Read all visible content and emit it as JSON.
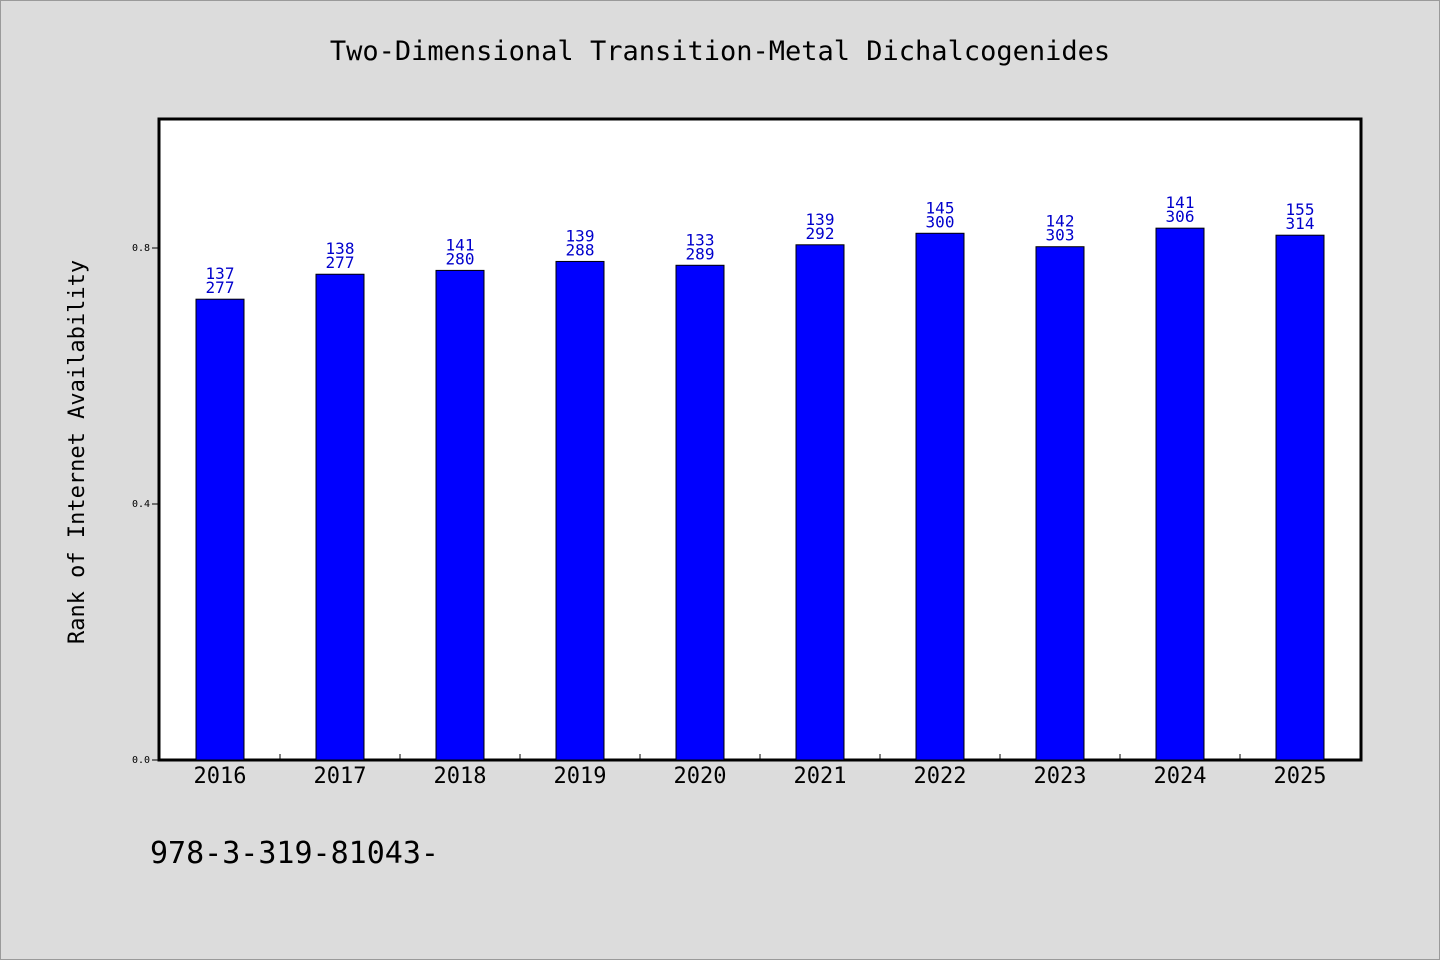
{
  "chart_data": {
    "type": "bar",
    "title": "Two-Dimensional Transition-Metal Dichalcogenides",
    "xlabel": "",
    "ylabel": "Rank of Internet Availability",
    "categories": [
      "2016",
      "2017",
      "2018",
      "2019",
      "2020",
      "2021",
      "2022",
      "2023",
      "2024",
      "2025"
    ],
    "values": [
      0.72,
      0.759,
      0.765,
      0.779,
      0.773,
      0.805,
      0.823,
      0.802,
      0.831,
      0.82
    ],
    "data_labels_top": [
      "137",
      "138",
      "141",
      "139",
      "133",
      "139",
      "145",
      "142",
      "141",
      "155"
    ],
    "data_labels_bottom": [
      "277",
      "277",
      "280",
      "288",
      "289",
      "292",
      "300",
      "303",
      "306",
      "314"
    ],
    "yticks": [
      "0.0",
      "0.4",
      "0.8"
    ],
    "ytick_values": [
      0.0,
      0.4,
      0.8
    ],
    "ylim": [
      0,
      1.0
    ],
    "grid": false,
    "legend": "none",
    "bar_color": "#0000ff",
    "label_color": "#0000cc"
  },
  "footer": "978-3-319-81043-"
}
